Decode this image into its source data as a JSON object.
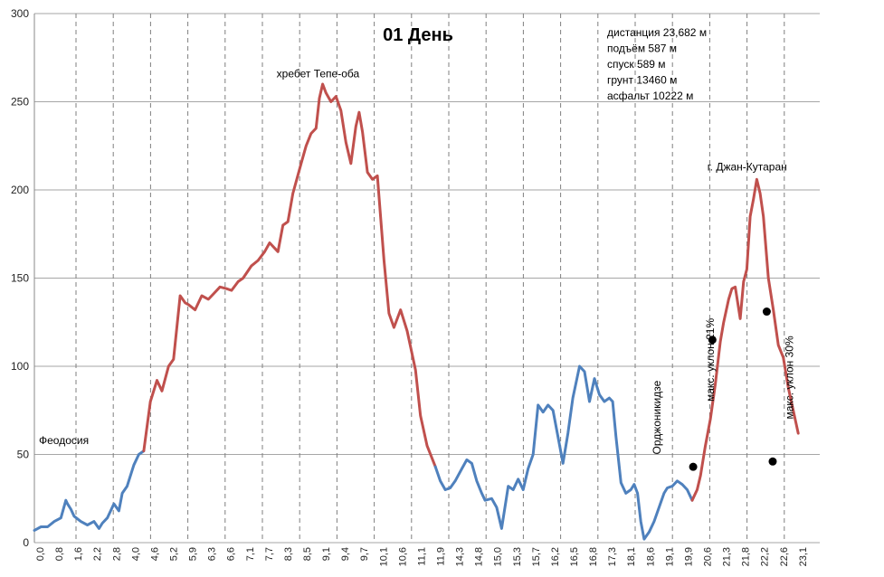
{
  "chart_data": {
    "type": "line",
    "title": "01  День",
    "xlabel": "",
    "ylabel": "",
    "ylim": [
      0,
      300
    ],
    "xlim": [
      0,
      23.7
    ],
    "yticks": [
      0,
      50,
      100,
      150,
      200,
      250,
      300
    ],
    "xtick_labels": [
      "0,0",
      "0,8",
      "1,6",
      "2,2",
      "2,8",
      "4,0",
      "4,6",
      "5,2",
      "5,9",
      "6,3",
      "6,6",
      "7,1",
      "7,7",
      "8,3",
      "8,5",
      "9,1",
      "9,4",
      "9,7",
      "10,1",
      "10,6",
      "11,1",
      "11,9",
      "14,3",
      "14,8",
      "15,0",
      "15,3",
      "15,7",
      "16,2",
      "16,5",
      "16,8",
      "17,3",
      "18,1",
      "18,6",
      "19,1",
      "19,9",
      "20,6",
      "21,3",
      "21,8",
      "22,2",
      "22,6",
      "23,1"
    ],
    "grid": {
      "horizontal": true,
      "vertical_dashed": true
    },
    "series_colors": {
      "ascent": "#c0504d",
      "flat_descent": "#4f81bd"
    },
    "series": [
      {
        "x": [
          0.0,
          0.2,
          0.4,
          0.6,
          0.8,
          0.95,
          1.0,
          1.1,
          1.2,
          1.4,
          1.6,
          1.8,
          1.95,
          2.05,
          2.2,
          2.4,
          2.55,
          2.65,
          2.8,
          3.0,
          3.15,
          3.3
        ],
        "values": [
          7,
          9,
          9,
          12,
          14,
          24,
          22,
          19,
          15,
          12,
          10,
          12,
          8,
          11,
          14,
          22,
          18,
          28,
          32,
          44,
          50,
          52
        ],
        "color": "#4f81bd"
      },
      {
        "x": [
          3.3,
          3.5,
          3.7,
          3.85,
          4.05,
          4.2,
          4.4,
          4.55,
          4.65,
          4.85,
          5.05,
          5.25,
          5.4,
          5.6,
          5.8,
          5.95,
          6.15,
          6.3,
          6.55,
          6.75,
          6.95,
          7.1,
          7.35,
          7.5,
          7.65,
          7.8,
          8.05,
          8.2,
          8.35,
          8.5,
          8.6,
          8.7,
          8.8,
          8.95,
          9.1,
          9.25,
          9.4,
          9.55,
          9.7,
          9.8,
          9.9,
          10.05,
          10.2,
          10.35,
          10.55,
          10.7,
          10.85,
          11.05,
          11.25,
          11.5,
          11.65,
          11.85,
          12.1
        ],
        "values": [
          52,
          80,
          92,
          86,
          100,
          104,
          140,
          136,
          135,
          132,
          140,
          138,
          141,
          145,
          144,
          143,
          148,
          150,
          157,
          160,
          165,
          170,
          165,
          180,
          182,
          198,
          215,
          225,
          232,
          235,
          252,
          260,
          255,
          250,
          253,
          245,
          227,
          215,
          236,
          244,
          233,
          210,
          206,
          208,
          160,
          130,
          122,
          132,
          120,
          98,
          72,
          55,
          43
        ],
        "color": "#c0504d"
      },
      {
        "x": [
          12.1,
          12.25,
          12.4,
          12.55,
          12.7,
          12.9,
          13.05,
          13.2,
          13.35,
          13.5,
          13.6,
          13.8,
          13.95,
          14.1,
          14.3,
          14.45,
          14.6,
          14.75,
          14.9,
          15.05,
          15.2,
          15.35,
          15.5,
          15.65,
          15.8,
          15.95,
          16.1,
          16.25,
          16.45,
          16.6,
          16.75,
          16.9,
          17.05,
          17.2,
          17.35,
          17.45,
          17.55,
          17.7,
          17.85,
          18.0,
          18.1,
          18.2,
          18.3,
          18.4,
          18.55,
          18.7,
          18.85,
          19.0,
          19.1,
          19.25,
          19.4,
          19.55,
          19.7,
          19.85
        ],
        "values": [
          43,
          35,
          30,
          31,
          35,
          42,
          47,
          45,
          35,
          28,
          24,
          25,
          20,
          8,
          32,
          30,
          36,
          30,
          42,
          50,
          78,
          74,
          78,
          75,
          60,
          45,
          62,
          82,
          100,
          97,
          80,
          93,
          84,
          80,
          82,
          80,
          60,
          34,
          28,
          30,
          33,
          28,
          12,
          2,
          6,
          12,
          20,
          28,
          31,
          32,
          35,
          33,
          30,
          24
        ],
        "color": "#4f81bd"
      },
      {
        "x": [
          19.85,
          20.0,
          20.1,
          20.25,
          20.4,
          20.55,
          20.7,
          20.8,
          20.95,
          21.05,
          21.15,
          21.3,
          21.4,
          21.5,
          21.6,
          21.7,
          21.8,
          21.9,
          22.0,
          22.15,
          22.3,
          22.45,
          22.6,
          22.75,
          22.9,
          23.05
        ],
        "values": [
          24,
          30,
          38,
          55,
          70,
          90,
          114,
          125,
          138,
          144,
          145,
          127,
          148,
          155,
          185,
          195,
          206,
          198,
          185,
          150,
          132,
          112,
          105,
          88,
          75,
          62
        ],
        "color": "#c0504d"
      }
    ],
    "annotations": [
      {
        "text": "Феодосия",
        "x": 0.0,
        "y": 58
      },
      {
        "text": "хребет Тепе-оба",
        "x": 8.4,
        "y": 266
      },
      {
        "text": "г. Джан-Кутаран",
        "x": 21.4,
        "y": 213
      },
      {
        "text": "Орджоникидзе",
        "x": 18.9,
        "y": 50,
        "rotated": true
      },
      {
        "text": "макс. уклон 21%",
        "x": 20.5,
        "y": 80,
        "rotated": true
      },
      {
        "text": "макс. уклон 30%",
        "x": 22.9,
        "y": 70,
        "rotated": true
      }
    ],
    "markers": [
      {
        "x": 19.88,
        "y": 43
      },
      {
        "x": 20.46,
        "y": 115
      },
      {
        "x": 22.1,
        "y": 131
      },
      {
        "x": 22.28,
        "y": 46
      }
    ],
    "stats": [
      "дистанция 23,682 м",
      "подъём 587 м",
      "спуск 589 м",
      "грунт 13460 м",
      "асфальт 10222 м"
    ]
  }
}
